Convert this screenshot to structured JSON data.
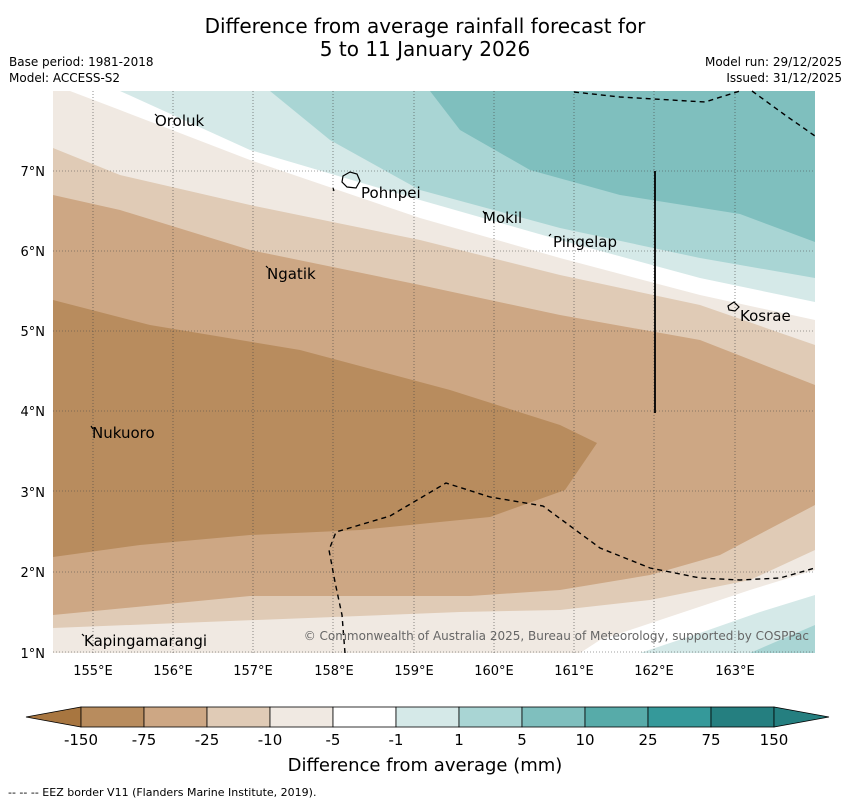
{
  "header": {
    "title_line1": "Difference from average rainfall forecast for",
    "title_line2": "5 to 11 January 2026",
    "base_period": "Base period: 1981-2018",
    "model": "Model: ACCESS-S2",
    "model_run": "Model run: 29/12/2025",
    "issued": "Issued: 31/12/2025"
  },
  "map": {
    "lat_labels": [
      "7°N",
      "6°N",
      "5°N",
      "4°N",
      "3°N",
      "2°N",
      "1°N"
    ],
    "lon_labels": [
      "155°E",
      "156°E",
      "157°E",
      "158°E",
      "159°E",
      "160°E",
      "161°E",
      "162°E",
      "163°E"
    ],
    "places": {
      "oroluk": "Oroluk",
      "pohnpei": "Pohnpei",
      "mokil": "Mokil",
      "pingelap": "Pingelap",
      "ngatik": "Ngatik",
      "kosrae": "Kosrae",
      "nukuoro": "Nukuoro",
      "kapingamarangi": "Kapingamarangi"
    },
    "copyright": "© Commonwealth of Australia 2025, Bureau of Meteorology, supported by COSPPac"
  },
  "colorbar": {
    "labels": [
      "-150",
      "-75",
      "-25",
      "-10",
      "-5",
      "-1",
      "1",
      "5",
      "10",
      "25",
      "75",
      "150"
    ],
    "colors": [
      "#a87640",
      "#b88c5e",
      "#cda784",
      "#e0cbb6",
      "#f0e9e2",
      "#ffffff",
      "#d5e9e8",
      "#a9d5d4",
      "#7fbfbe",
      "#57aba9",
      "#35999a",
      "#257f80"
    ],
    "title": "Difference from average (mm)"
  },
  "footnote": "--  --  -- EEZ border V11 (Flanders Marine Institute, 2019)."
}
